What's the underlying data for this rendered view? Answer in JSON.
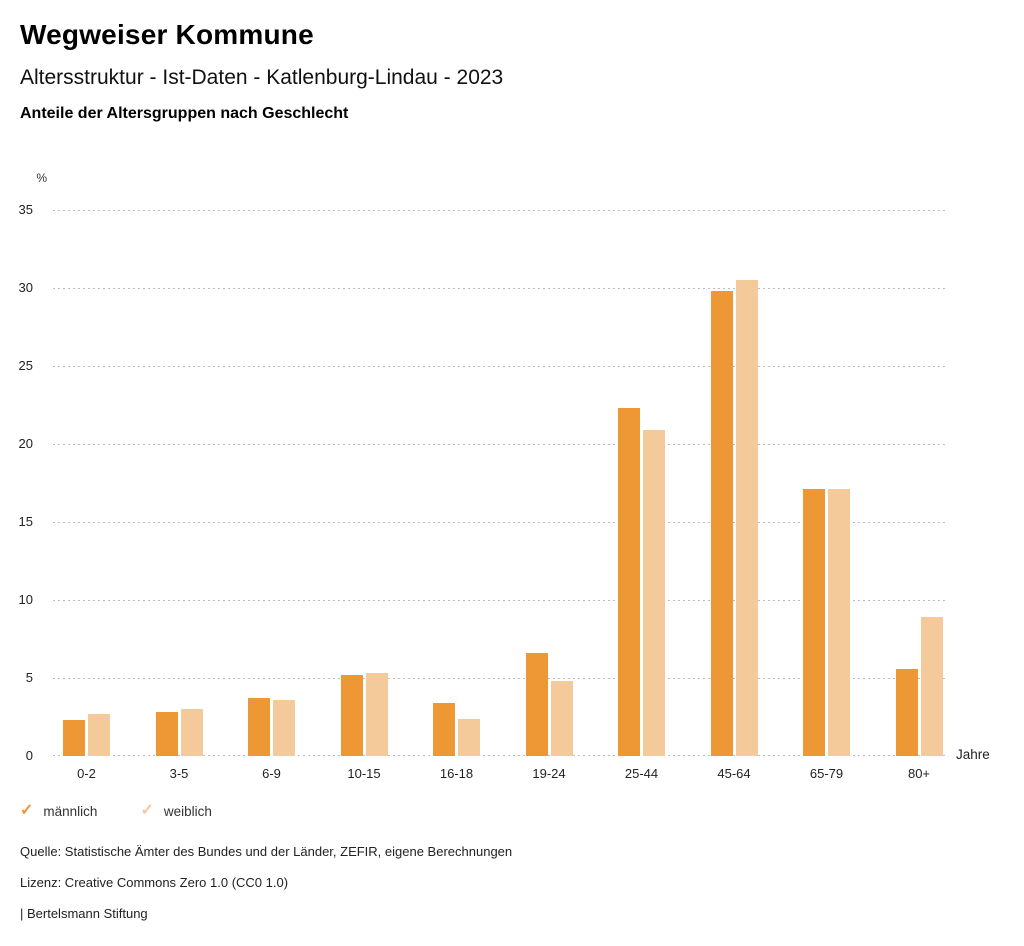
{
  "header": {
    "title": "Wegweiser Kommune",
    "subtitle": "Altersstruktur - Ist-Daten - Katlenburg-Lindau - 2023",
    "chart_heading": "Anteile der Altersgruppen nach Geschlecht"
  },
  "chart_data": {
    "type": "bar",
    "title": "Anteile der Altersgruppen nach Geschlecht",
    "unit_label": "%",
    "x_axis_label": "Jahre",
    "categories": [
      "0-2",
      "3-5",
      "6-9",
      "10-15",
      "16-18",
      "19-24",
      "25-44",
      "45-64",
      "65-79",
      "80+"
    ],
    "series": [
      {
        "name": "männlich",
        "color": "#ee9735",
        "values": [
          2.3,
          2.8,
          3.7,
          5.2,
          3.4,
          6.6,
          22.3,
          29.8,
          17.1,
          5.6
        ]
      },
      {
        "name": "weiblich",
        "color": "#f5ca9a",
        "values": [
          2.7,
          3.0,
          3.6,
          5.3,
          2.4,
          4.8,
          20.9,
          30.5,
          17.1,
          8.9
        ]
      }
    ],
    "ylim": [
      0,
      35
    ],
    "yticks": [
      0,
      5,
      10,
      15,
      20,
      25,
      30,
      35
    ],
    "grid": "horizontal-dotted",
    "legend_position": "bottom-left"
  },
  "legend": {
    "check_icon": "✓"
  },
  "footer": {
    "source": "Quelle: Statistische Ämter des Bundes und der Länder, ZEFIR, eigene Berechnungen",
    "license": "Lizenz: Creative Commons Zero 1.0 (CC0 1.0)",
    "attribution": "| Bertelsmann Stiftung"
  }
}
